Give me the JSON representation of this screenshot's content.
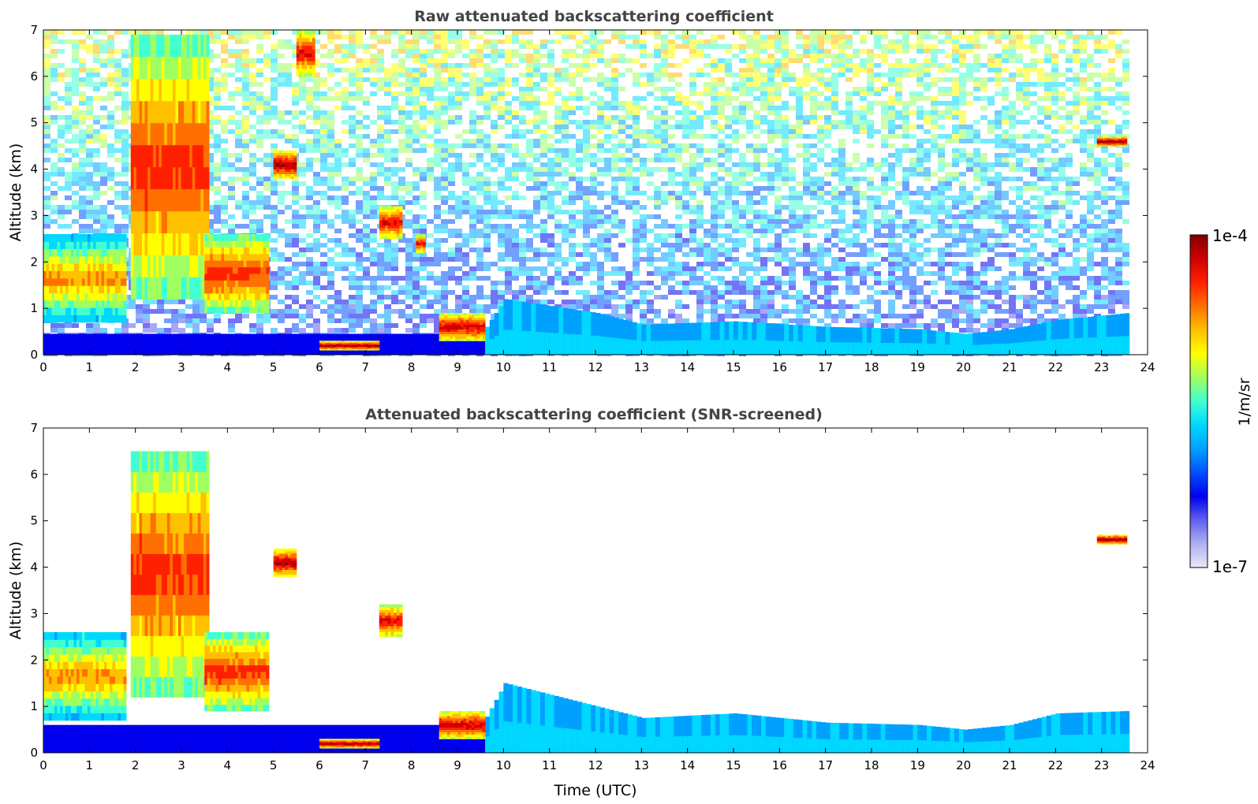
{
  "chart_data": [
    {
      "type": "heatmap",
      "title": "Raw attenuated backscattering coefficient",
      "xlabel": "",
      "ylabel": "Altitude (km)",
      "xlim": [
        0,
        24
      ],
      "ylim": [
        0,
        7
      ],
      "xticks": [
        "0",
        "1",
        "2",
        "3",
        "4",
        "5",
        "6",
        "7",
        "8",
        "9",
        "10",
        "11",
        "12",
        "13",
        "14",
        "15",
        "16",
        "17",
        "18",
        "19",
        "20",
        "21",
        "22",
        "23",
        "24"
      ],
      "yticks": [
        "0",
        "1",
        "2",
        "3",
        "4",
        "5",
        "6",
        "7"
      ],
      "data_end_time": 23.55,
      "noise_background": true,
      "features": [
        {
          "name": "aerosol layer 0-2 UTC",
          "x": [
            0,
            1.8
          ],
          "y": [
            0.7,
            2.6
          ],
          "level": 0.75
        },
        {
          "name": "descending cloud",
          "x": [
            1.9,
            3.6
          ],
          "y": [
            1.2,
            6.9
          ],
          "level": 0.85
        },
        {
          "name": "cloud 3.5-4.9 UTC",
          "x": [
            3.5,
            4.9
          ],
          "y": [
            0.9,
            2.6
          ],
          "level": 0.85
        },
        {
          "name": "cloud ~5.2 UTC",
          "x": [
            5.0,
            5.5
          ],
          "y": [
            3.8,
            4.4
          ],
          "level": 0.95
        },
        {
          "name": "high cloud ~5.7 UTC",
          "x": [
            5.5,
            5.9
          ],
          "y": [
            6.0,
            7.0
          ],
          "level": 0.9
        },
        {
          "name": "cloud ~7.5 UTC",
          "x": [
            7.3,
            7.8
          ],
          "y": [
            2.5,
            3.2
          ],
          "level": 0.9
        },
        {
          "name": "cloud ~8.2 UTC",
          "x": [
            8.1,
            8.3
          ],
          "y": [
            2.2,
            2.6
          ],
          "level": 0.9
        },
        {
          "name": "low cloud ~9 UTC",
          "x": [
            8.6,
            9.6
          ],
          "y": [
            0.3,
            0.9
          ],
          "level": 0.92
        },
        {
          "name": "surface layer 6-7 UTC",
          "x": [
            6.0,
            7.3
          ],
          "y": [
            0.1,
            0.3
          ],
          "level": 0.95
        },
        {
          "name": "high cloud ~23.2 UTC",
          "x": [
            22.9,
            23.55
          ],
          "y": [
            4.5,
            4.7
          ],
          "level": 0.97
        }
      ],
      "boundary_layer_top_km": [
        [
          0,
          0.45
        ],
        [
          9.5,
          0.45
        ],
        [
          10,
          1.2
        ],
        [
          12,
          0.9
        ],
        [
          13,
          0.65
        ],
        [
          15,
          0.72
        ],
        [
          17,
          0.6
        ],
        [
          19,
          0.55
        ],
        [
          20,
          0.45
        ],
        [
          21,
          0.55
        ],
        [
          22,
          0.75
        ],
        [
          23.55,
          0.9
        ]
      ]
    },
    {
      "type": "heatmap",
      "title": "Attenuated backscattering coefficient (SNR-screened)",
      "xlabel": "Time (UTC)",
      "ylabel": "Altitude (km)",
      "xlim": [
        0,
        24
      ],
      "ylim": [
        0,
        7
      ],
      "xticks": [
        "0",
        "1",
        "2",
        "3",
        "4",
        "5",
        "6",
        "7",
        "8",
        "9",
        "10",
        "11",
        "12",
        "13",
        "14",
        "15",
        "16",
        "17",
        "18",
        "19",
        "20",
        "21",
        "22",
        "23",
        "24"
      ],
      "yticks": [
        "0",
        "1",
        "2",
        "3",
        "4",
        "5",
        "6",
        "7"
      ],
      "data_end_time": 23.55,
      "noise_background": false,
      "features": [
        {
          "name": "aerosol layer 0-2 UTC",
          "x": [
            0,
            1.8
          ],
          "y": [
            0.7,
            2.6
          ],
          "level": 0.75
        },
        {
          "name": "descending cloud",
          "x": [
            1.9,
            3.6
          ],
          "y": [
            1.2,
            6.5
          ],
          "level": 0.85
        },
        {
          "name": "cloud 3.5-4.9 UTC",
          "x": [
            3.5,
            4.9
          ],
          "y": [
            0.9,
            2.6
          ],
          "level": 0.85
        },
        {
          "name": "cloud ~5.2 UTC",
          "x": [
            5.0,
            5.5
          ],
          "y": [
            3.8,
            4.4
          ],
          "level": 0.95
        },
        {
          "name": "cloud ~7.5 UTC",
          "x": [
            7.3,
            7.8
          ],
          "y": [
            2.5,
            3.2
          ],
          "level": 0.9
        },
        {
          "name": "low cloud ~9 UTC",
          "x": [
            8.6,
            9.6
          ],
          "y": [
            0.3,
            0.9
          ],
          "level": 0.92
        },
        {
          "name": "surface layer 6-7 UTC",
          "x": [
            6.0,
            7.3
          ],
          "y": [
            0.1,
            0.3
          ],
          "level": 0.95
        },
        {
          "name": "high cloud ~23.2 UTC",
          "x": [
            22.9,
            23.55
          ],
          "y": [
            4.5,
            4.7
          ],
          "level": 0.97
        }
      ],
      "boundary_layer_top_km": [
        [
          0,
          0.6
        ],
        [
          9.5,
          0.6
        ],
        [
          10,
          1.5
        ],
        [
          12,
          1.0
        ],
        [
          13,
          0.75
        ],
        [
          15,
          0.85
        ],
        [
          17,
          0.65
        ],
        [
          19,
          0.6
        ],
        [
          20,
          0.5
        ],
        [
          21,
          0.6
        ],
        [
          22,
          0.85
        ],
        [
          23.55,
          0.9
        ]
      ]
    }
  ],
  "colorbar": {
    "label": "1/m/sr",
    "max_label": "1e-4",
    "min_label": "1e-7",
    "colormap": [
      "#e8e8f8",
      "#b0b0f0",
      "#6060f0",
      "#0000ee",
      "#0050ff",
      "#00a0ff",
      "#00d8ff",
      "#40ffd0",
      "#a0ff60",
      "#ffff00",
      "#ffc000",
      "#ff7000",
      "#ff2000",
      "#d00000",
      "#800000"
    ]
  }
}
